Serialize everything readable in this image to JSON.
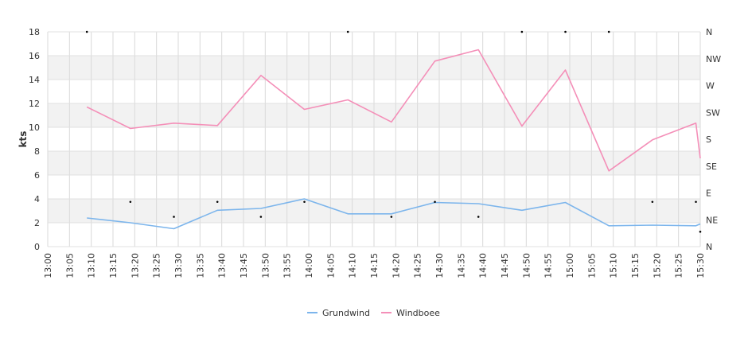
{
  "chart_data": {
    "type": "line",
    "ylabel": "kts",
    "ylim": [
      0,
      18
    ],
    "yticks": [
      0,
      2,
      4,
      6,
      8,
      10,
      12,
      14,
      16,
      18
    ],
    "x_categories": [
      "13:00",
      "13:05",
      "13:10",
      "13:15",
      "13:20",
      "13:25",
      "13:30",
      "13:35",
      "13:40",
      "13:45",
      "13:50",
      "13:55",
      "14:00",
      "14:05",
      "14:10",
      "14:15",
      "14:20",
      "14:25",
      "14:30",
      "14:35",
      "14:40",
      "14:45",
      "14:50",
      "14:55",
      "15:00",
      "15:05",
      "15:10",
      "15:15",
      "15:20",
      "15:25",
      "15:30"
    ],
    "x": [
      "13:09",
      "13:19",
      "13:29",
      "13:39",
      "13:49",
      "13:59",
      "14:09",
      "14:19",
      "14:29",
      "14:39",
      "14:49",
      "14:59",
      "15:09",
      "15:19",
      "15:29",
      "15:30"
    ],
    "series": [
      {
        "name": "Grundwind",
        "color": "#7cb5ec",
        "values": [
          2.4,
          2.0,
          1.5,
          3.05,
          3.2,
          4.0,
          2.75,
          2.75,
          3.7,
          3.6,
          3.05,
          3.7,
          1.75,
          1.8,
          1.75,
          1.9
        ]
      },
      {
        "name": "Windboee",
        "color": "#f48fb8",
        "values": [
          11.7,
          9.9,
          10.35,
          10.15,
          14.35,
          11.5,
          12.3,
          10.45,
          15.55,
          16.5,
          10.1,
          14.8,
          6.35,
          8.95,
          10.35,
          7.4
        ]
      }
    ],
    "direction_axis": {
      "labels": [
        "N",
        "NE",
        "E",
        "SE",
        "S",
        "SW",
        "W",
        "NW",
        "N"
      ],
      "ylim": [
        0,
        360
      ]
    },
    "direction_points": {
      "x": [
        "13:09",
        "13:19",
        "13:29",
        "13:39",
        "13:49",
        "13:59",
        "14:09",
        "14:19",
        "14:29",
        "14:39",
        "14:49",
        "14:59",
        "15:09",
        "15:19",
        "15:29",
        "15:30"
      ],
      "values": [
        360,
        75,
        50,
        75,
        50,
        75,
        360,
        50,
        75,
        50,
        360,
        360,
        360,
        75,
        75,
        25
      ]
    },
    "grid": true,
    "legend_position": "bottom-center"
  }
}
